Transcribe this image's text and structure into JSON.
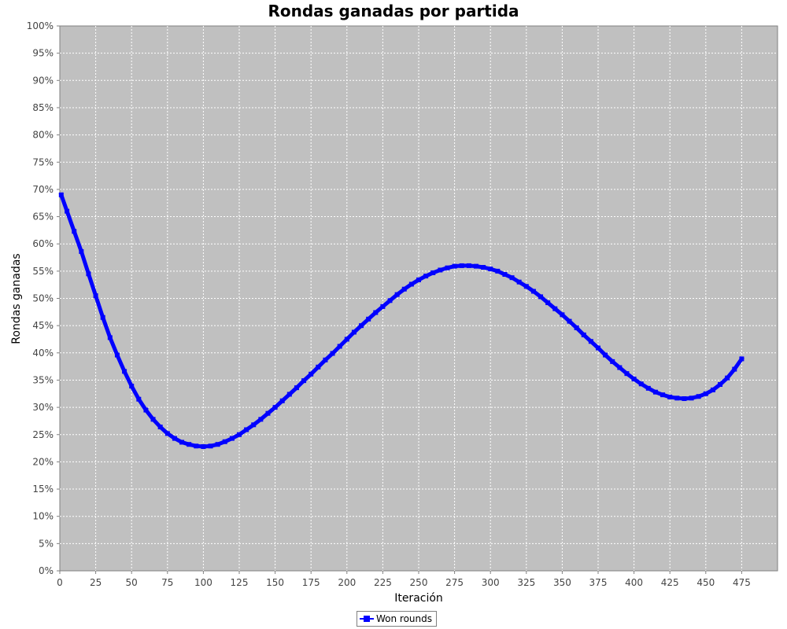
{
  "chart_data": {
    "type": "line",
    "title": "Rondas ganadas por partida",
    "xlabel": "Iteración",
    "ylabel": "Rondas ganadas",
    "xlim": [
      0,
      500
    ],
    "ylim": [
      0,
      100
    ],
    "x_ticks": [
      0,
      25,
      50,
      75,
      100,
      125,
      150,
      175,
      200,
      225,
      250,
      275,
      300,
      325,
      350,
      375,
      400,
      425,
      450,
      475
    ],
    "y_ticks": [
      0,
      5,
      10,
      15,
      20,
      25,
      30,
      35,
      40,
      45,
      50,
      55,
      60,
      65,
      70,
      75,
      80,
      85,
      90,
      95,
      100
    ],
    "y_tick_suffix": "%",
    "grid": true,
    "legend_position": "bottom-center",
    "series": [
      {
        "name": "Won rounds",
        "color": "#0000ff",
        "marker": "square",
        "x": [
          1,
          5,
          10,
          15,
          20,
          25,
          30,
          35,
          40,
          45,
          50,
          55,
          60,
          65,
          70,
          75,
          80,
          85,
          90,
          95,
          100,
          105,
          110,
          115,
          120,
          125,
          130,
          135,
          140,
          145,
          150,
          155,
          160,
          165,
          170,
          175,
          180,
          185,
          190,
          195,
          200,
          205,
          210,
          215,
          220,
          225,
          230,
          235,
          240,
          245,
          250,
          255,
          260,
          265,
          270,
          275,
          280,
          285,
          290,
          295,
          300,
          305,
          310,
          315,
          320,
          325,
          330,
          335,
          340,
          345,
          350,
          355,
          360,
          365,
          370,
          375,
          380,
          385,
          390,
          395,
          400,
          405,
          410,
          415,
          420,
          425,
          430,
          435,
          440,
          445,
          450,
          455,
          460,
          465,
          470,
          475
        ],
        "values": [
          69.0,
          66.0,
          62.3,
          58.6,
          54.5,
          50.5,
          46.5,
          42.8,
          39.6,
          36.6,
          33.9,
          31.5,
          29.5,
          27.8,
          26.4,
          25.2,
          24.3,
          23.6,
          23.2,
          22.9,
          22.8,
          22.9,
          23.2,
          23.7,
          24.3,
          25.0,
          25.9,
          26.8,
          27.8,
          28.9,
          30.0,
          31.2,
          32.4,
          33.6,
          34.9,
          36.1,
          37.4,
          38.7,
          39.9,
          41.2,
          42.5,
          43.8,
          45.0,
          46.2,
          47.4,
          48.5,
          49.6,
          50.7,
          51.7,
          52.6,
          53.4,
          54.1,
          54.7,
          55.2,
          55.6,
          55.9,
          56.0,
          56.0,
          55.9,
          55.7,
          55.4,
          55.0,
          54.4,
          53.8,
          53.0,
          52.2,
          51.3,
          50.3,
          49.2,
          48.1,
          47.0,
          45.8,
          44.6,
          43.3,
          42.1,
          40.9,
          39.6,
          38.4,
          37.3,
          36.2,
          35.2,
          34.3,
          33.5,
          32.8,
          32.3,
          31.9,
          31.7,
          31.6,
          31.7,
          32.0,
          32.5,
          33.2,
          34.2,
          35.4,
          37.0,
          38.9
        ]
      }
    ]
  }
}
